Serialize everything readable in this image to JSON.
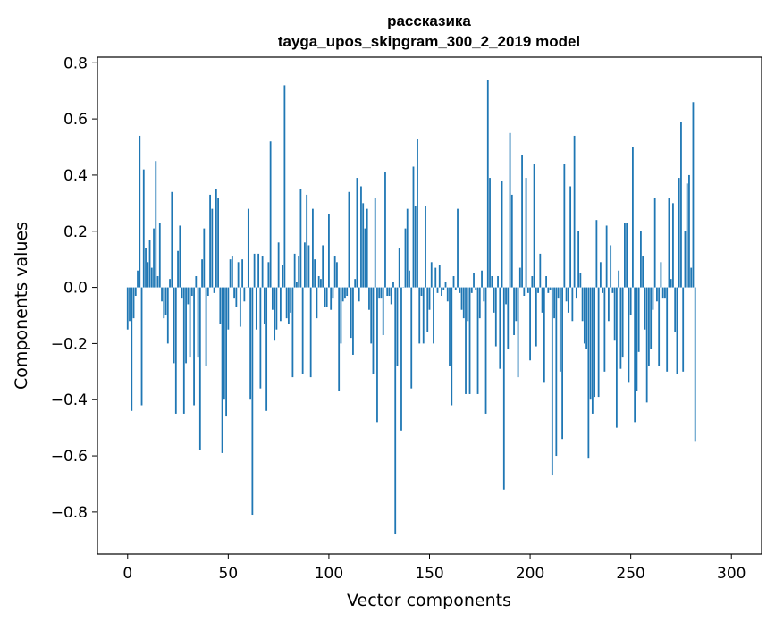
{
  "chart_data": {
    "type": "bar",
    "title_line1": "рассказика",
    "title_line2": "tayga_upos_skipgram_300_2_2019 model",
    "xlabel": "Vector components",
    "ylabel": "Components values",
    "xlim": [
      -15,
      315
    ],
    "ylim": [
      -0.95,
      0.82
    ],
    "xticks": [
      0,
      50,
      100,
      150,
      200,
      250,
      300
    ],
    "xtick_labels": [
      "0",
      "50",
      "100",
      "150",
      "200",
      "250",
      "300"
    ],
    "yticks": [
      -0.8,
      -0.6,
      -0.4,
      -0.2,
      0.0,
      0.2,
      0.4,
      0.6,
      0.8
    ],
    "ytick_labels": [
      "−0.8",
      "−0.6",
      "−0.4",
      "−0.2",
      "0.0",
      "0.2",
      "0.4",
      "0.6",
      "0.8"
    ],
    "bar_color": "#1f77b4",
    "values": [
      -0.15,
      -0.12,
      -0.44,
      -0.11,
      -0.03,
      0.06,
      0.54,
      -0.42,
      0.42,
      0.14,
      0.09,
      0.17,
      0.07,
      0.21,
      0.45,
      0.04,
      0.23,
      -0.05,
      -0.11,
      -0.1,
      -0.2,
      0.03,
      0.34,
      -0.27,
      -0.45,
      0.13,
      0.22,
      -0.04,
      -0.45,
      -0.27,
      -0.06,
      -0.25,
      -0.03,
      -0.42,
      0.04,
      -0.25,
      -0.58,
      0.1,
      0.21,
      -0.28,
      -0.03,
      0.33,
      0.28,
      -0.02,
      0.35,
      0.32,
      -0.13,
      -0.59,
      -0.4,
      -0.46,
      -0.15,
      0.1,
      0.11,
      -0.04,
      -0.07,
      0.09,
      -0.14,
      0.1,
      -0.05,
      0.0,
      0.28,
      -0.4,
      -0.81,
      0.12,
      -0.15,
      0.12,
      -0.36,
      0.11,
      -0.13,
      -0.44,
      0.09,
      0.52,
      -0.08,
      -0.19,
      -0.15,
      0.16,
      -0.12,
      0.08,
      0.72,
      -0.11,
      -0.13,
      -0.09,
      -0.32,
      0.12,
      0.02,
      0.11,
      0.35,
      -0.31,
      0.16,
      0.33,
      0.15,
      -0.32,
      0.28,
      0.1,
      -0.11,
      0.04,
      0.03,
      0.15,
      -0.07,
      -0.07,
      0.26,
      -0.08,
      -0.04,
      0.11,
      0.09,
      -0.37,
      -0.2,
      -0.05,
      -0.04,
      -0.03,
      0.34,
      -0.18,
      -0.24,
      0.03,
      0.39,
      -0.05,
      0.36,
      0.3,
      0.21,
      0.28,
      -0.08,
      -0.2,
      -0.31,
      0.32,
      -0.48,
      -0.04,
      -0.04,
      -0.17,
      0.41,
      -0.03,
      -0.03,
      -0.06,
      0.02,
      -0.88,
      -0.28,
      0.14,
      -0.51,
      0.0,
      0.21,
      0.28,
      0.06,
      -0.36,
      0.43,
      0.29,
      0.53,
      -0.2,
      -0.03,
      -0.2,
      0.29,
      -0.16,
      -0.08,
      0.09,
      -0.2,
      0.07,
      -0.02,
      0.08,
      -0.03,
      -0.01,
      0.02,
      -0.05,
      -0.28,
      -0.42,
      0.04,
      -0.01,
      0.28,
      -0.02,
      -0.08,
      -0.11,
      -0.38,
      -0.12,
      -0.38,
      -0.02,
      0.05,
      -0.01,
      -0.38,
      -0.11,
      0.06,
      -0.05,
      -0.45,
      0.74,
      0.39,
      0.04,
      -0.09,
      -0.21,
      0.04,
      -0.29,
      0.38,
      -0.72,
      -0.06,
      -0.22,
      0.55,
      0.33,
      -0.17,
      -0.12,
      -0.32,
      0.07,
      0.47,
      -0.03,
      0.39,
      -0.02,
      -0.26,
      0.04,
      0.44,
      -0.21,
      -0.02,
      0.12,
      -0.09,
      -0.34,
      0.04,
      -0.02,
      -0.01,
      -0.67,
      -0.11,
      -0.6,
      -0.04,
      -0.3,
      -0.54,
      0.44,
      -0.05,
      -0.09,
      0.36,
      -0.12,
      0.54,
      -0.04,
      0.2,
      0.05,
      -0.12,
      -0.2,
      -0.22,
      -0.61,
      -0.4,
      -0.45,
      -0.39,
      0.24,
      -0.39,
      0.09,
      -0.02,
      -0.3,
      0.22,
      -0.12,
      0.15,
      -0.02,
      -0.19,
      -0.5,
      0.06,
      -0.29,
      -0.25,
      0.23,
      0.23,
      -0.34,
      -0.1,
      0.5,
      -0.48,
      -0.37,
      -0.23,
      0.2,
      0.11,
      -0.15,
      -0.41,
      -0.28,
      -0.22,
      -0.08,
      0.32,
      -0.05,
      -0.28,
      0.09,
      -0.04,
      -0.04,
      -0.3,
      0.32,
      0.03,
      0.3,
      -0.16,
      -0.31,
      0.39,
      0.59,
      -0.3,
      0.2,
      0.37,
      0.4,
      0.07,
      0.66,
      -0.55
    ]
  }
}
